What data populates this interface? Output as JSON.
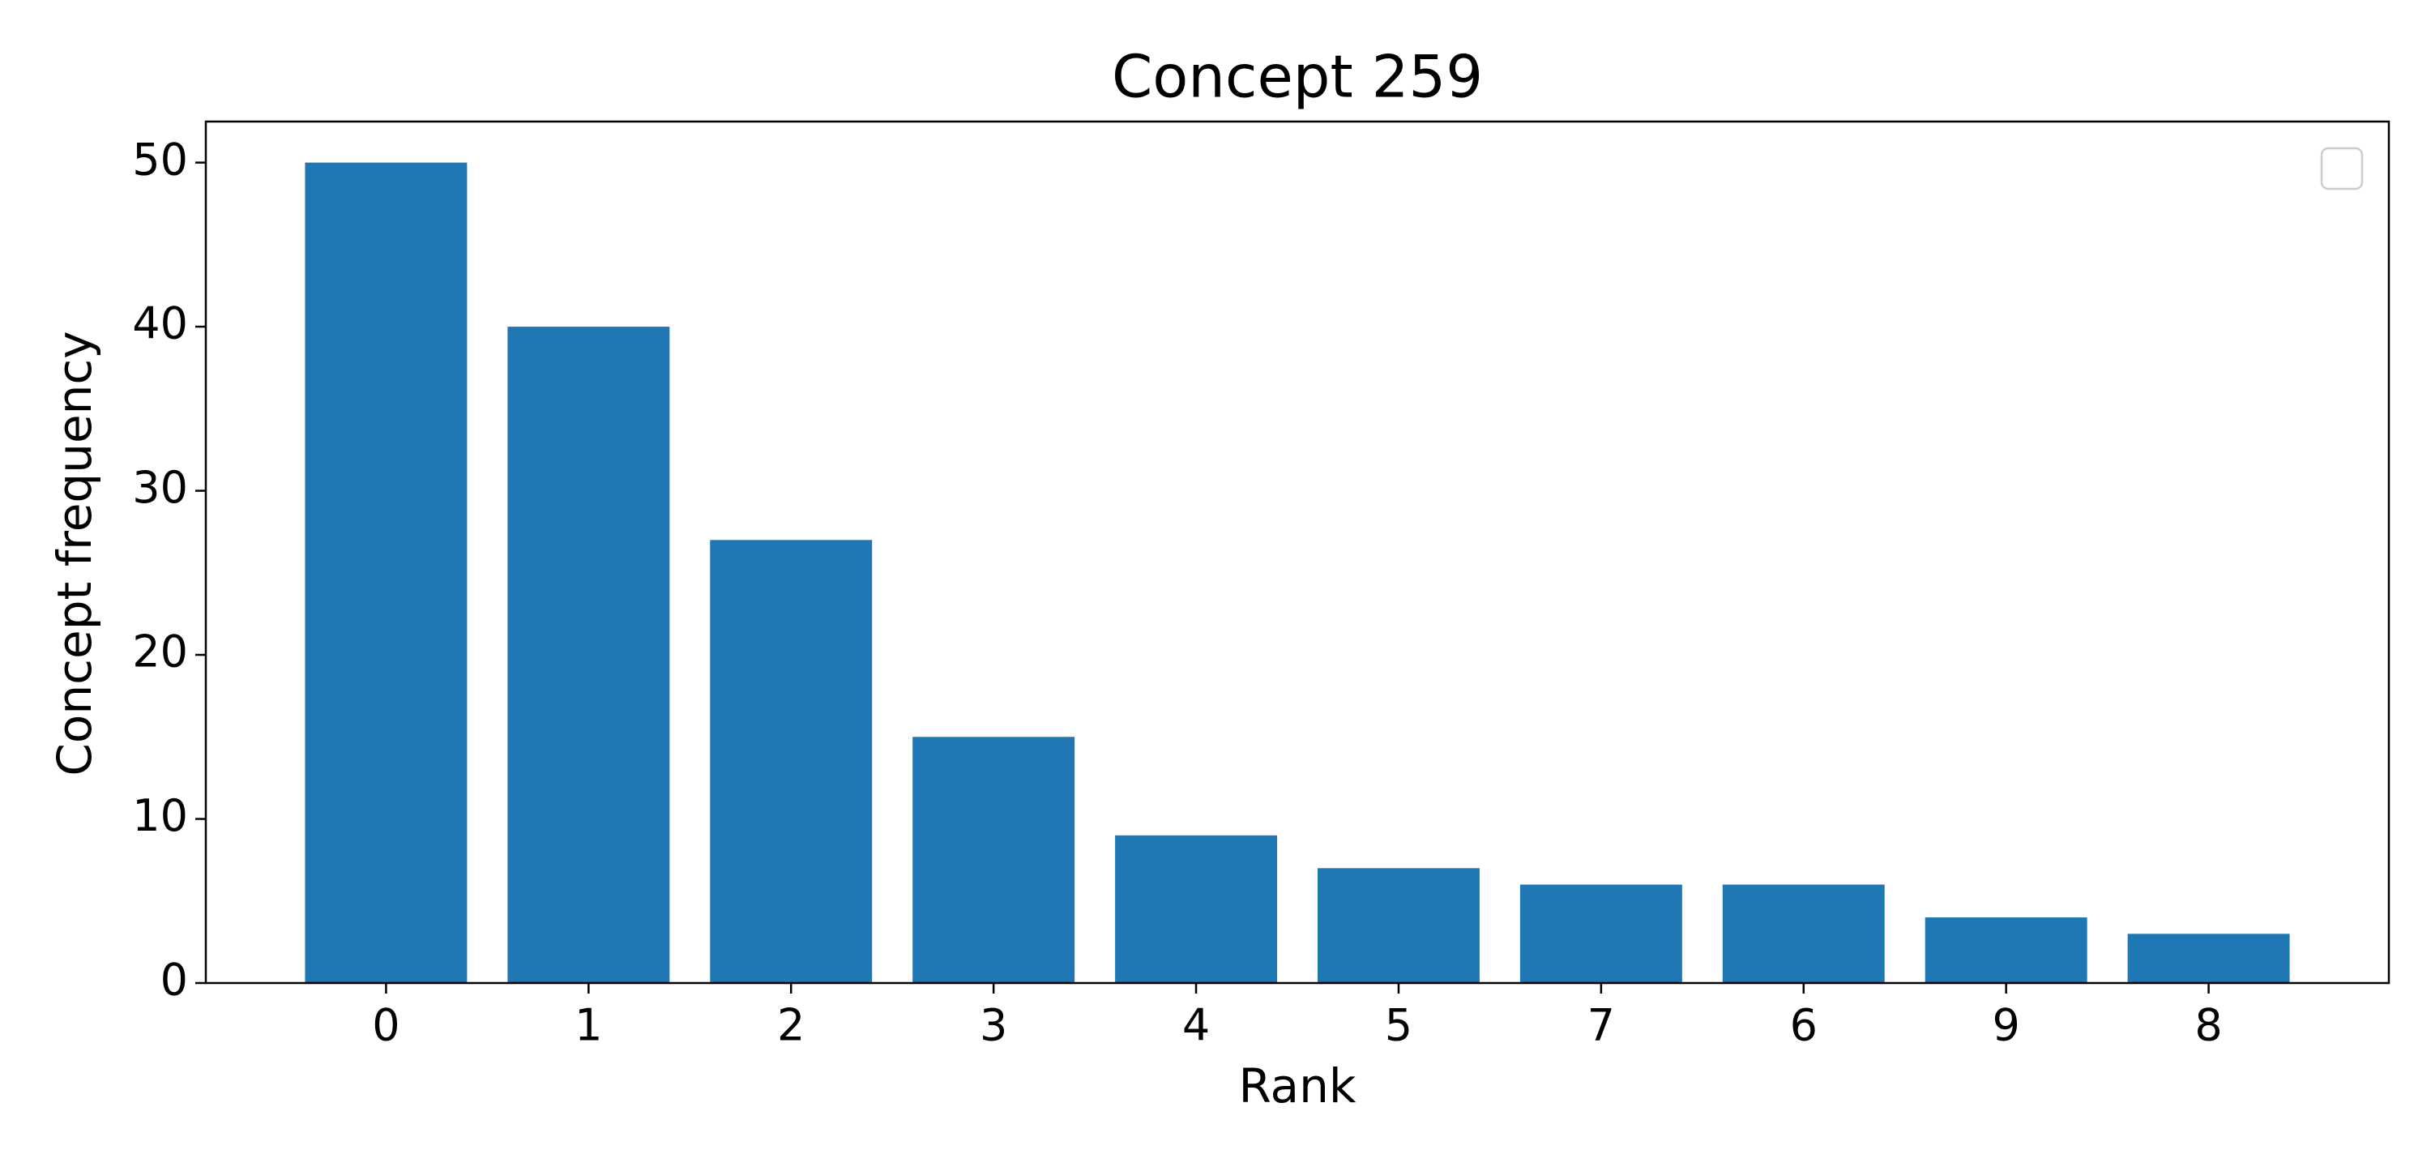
{
  "chart_data": {
    "type": "bar",
    "title": "Concept 259",
    "x_label": "Rank",
    "y_label": "Concept frequency",
    "categories": [
      "0",
      "1",
      "2",
      "3",
      "4",
      "5",
      "7",
      "6",
      "9",
      "8"
    ],
    "values": [
      50,
      40,
      27,
      15,
      9,
      7,
      6,
      6,
      4,
      3
    ],
    "color": "#1f77b4",
    "ylim": [
      0,
      52.5
    ],
    "yticks": [
      0,
      10,
      20,
      30,
      40,
      50
    ],
    "grid": false
  }
}
